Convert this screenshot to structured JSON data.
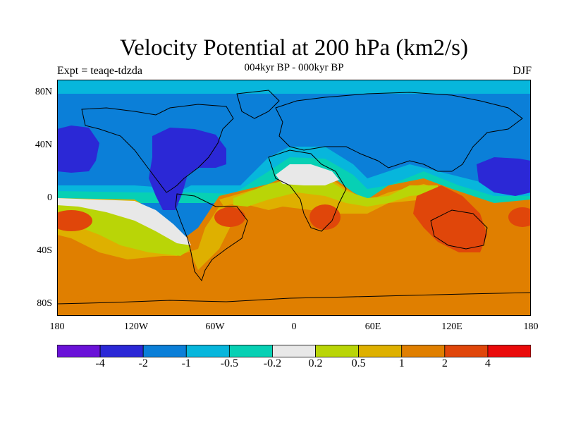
{
  "title": "Velocity Potential at 200 hPa (km2/s)",
  "subtitle": "004kyr BP - 000kyr BP",
  "left_label": "Expt = teaqe-tdzda",
  "right_label": "DJF",
  "map": {
    "lat_ticks": [
      "80N",
      "40N",
      "0",
      "40S",
      "80S"
    ],
    "lon_ticks": [
      "180",
      "120W",
      "60W",
      "0",
      "60E",
      "120E",
      "180"
    ]
  },
  "colorbar": {
    "labels": [
      "-4",
      "-2",
      "-1",
      "-0.5",
      "-0.2",
      "0.2",
      "0.5",
      "1",
      "2",
      "4"
    ],
    "colors": [
      "#6a12d8",
      "#2b28d6",
      "#0b7fd8",
      "#07b6dc",
      "#07d0b4",
      "#e8e8e8",
      "#b9d507",
      "#deb000",
      "#e07f00",
      "#e0460a",
      "#ea0a0a"
    ]
  }
}
